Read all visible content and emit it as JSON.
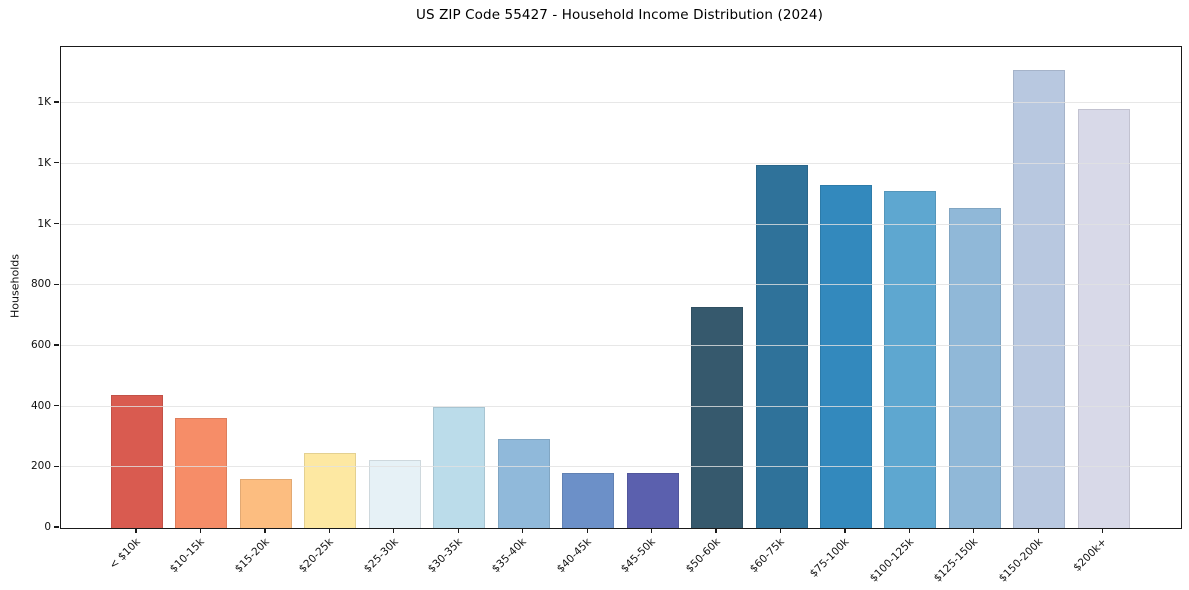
{
  "title": "US ZIP Code 55427 - Household Income Distribution (2024)",
  "y_axis": {
    "label": "Households",
    "tick_values": [
      0,
      200,
      400,
      600,
      800,
      1000,
      1200,
      1400
    ],
    "tick_labels": [
      "0",
      "200",
      "400",
      "600",
      "800",
      "1K",
      "1K",
      "1K"
    ]
  },
  "chart_data": {
    "type": "bar",
    "title": "US ZIP Code 55427 - Household Income Distribution (2024)",
    "xlabel": "",
    "ylabel": "Households",
    "categories": [
      "< $10k",
      "$10-15k",
      "$15-20k",
      "$20-25k",
      "$25-30k",
      "$30-35k",
      "$35-40k",
      "$40-45k",
      "$45-50k",
      "$50-60k",
      "$60-75k",
      "$75-100k",
      "$100-125k",
      "$125-150k",
      "$150-200k",
      "$200k+"
    ],
    "values": [
      437,
      364,
      163,
      248,
      223,
      400,
      295,
      182,
      182,
      730,
      1195,
      1130,
      1110,
      1055,
      1510,
      1380
    ],
    "bar_colors": [
      "#d95b50",
      "#f68d68",
      "#fcbd80",
      "#fde8a2",
      "#e6f1f6",
      "#bbdcea",
      "#90b9da",
      "#6c90c8",
      "#5b60ae",
      "#36596d",
      "#2f729a",
      "#3389bd",
      "#5ea7d0",
      "#90b8d8",
      "#b8c8e0",
      "#d8d9e8"
    ],
    "ylim": [
      0,
      1585
    ],
    "ytick_values": [
      0,
      200,
      400,
      600,
      800,
      1000,
      1200,
      1400
    ],
    "ytick_labels": [
      "0",
      "200",
      "400",
      "600",
      "800",
      "1K",
      "1K",
      "1K"
    ],
    "grid": "horizontal",
    "legend": "none",
    "x_tick_rotation_deg": 45
  }
}
